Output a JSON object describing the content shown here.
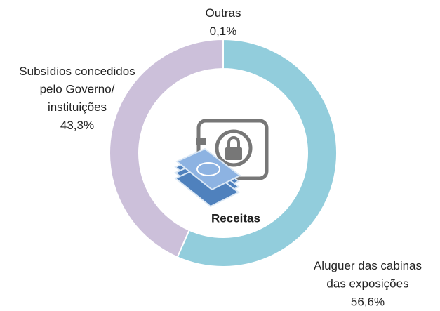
{
  "chart_data": {
    "type": "pie",
    "donut": true,
    "center_label": "Receitas",
    "categories": [
      "Aluguer das cabinas\ndas exposições",
      "Subsídios concedidos\npelo Governo/\ninstituições",
      "Outras"
    ],
    "values": [
      56.6,
      43.3,
      0.1
    ],
    "value_labels": [
      "56,6%",
      "43,3%",
      "0,1%"
    ],
    "colors": [
      "#92cddc",
      "#ccc0da",
      "#a6a6a6"
    ]
  }
}
